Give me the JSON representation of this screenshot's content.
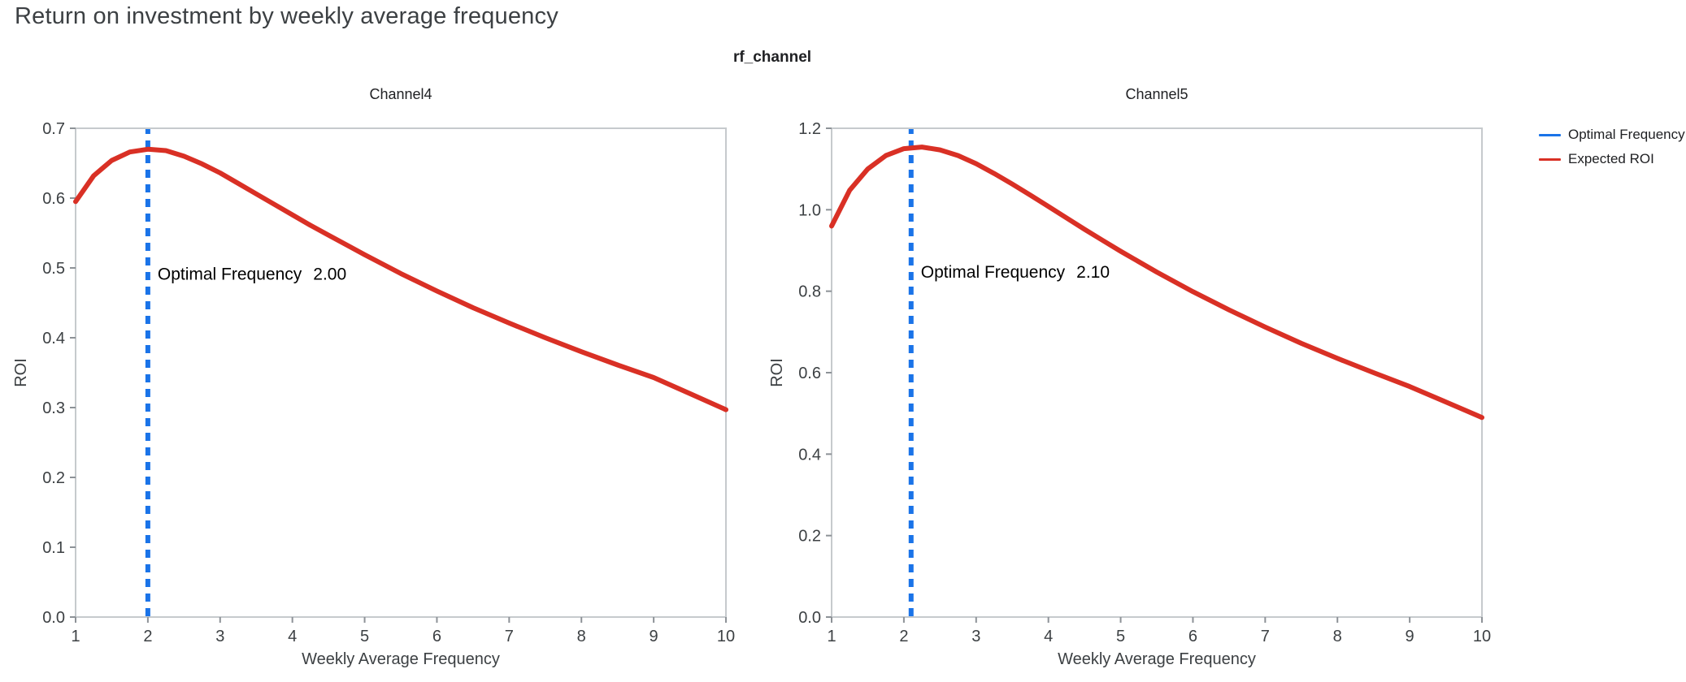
{
  "page": {
    "title": "Return on investment by weekly average frequency",
    "facet_title": "rf_channel"
  },
  "legend": {
    "items": [
      {
        "label": "Optimal Frequency",
        "color": "#1a73e8"
      },
      {
        "label": "Expected ROI",
        "color": "#d93025"
      }
    ]
  },
  "chart_data": {
    "type": "line",
    "title": "rf_channel",
    "xlabel": "Weekly Average Frequency",
    "ylabel": "ROI",
    "legend_position": "top-right",
    "grid": false,
    "colors": {
      "optimal": "#1a73e8",
      "roi": "#d93025"
    },
    "charts": [
      {
        "title": "Channel4",
        "xlim": [
          1,
          10
        ],
        "ylim": [
          0,
          0.7
        ],
        "xticks": [
          1,
          2,
          3,
          4,
          5,
          6,
          7,
          8,
          9,
          10
        ],
        "xtick_labels": [
          "1",
          "2",
          "3",
          "4",
          "5",
          "6",
          "7",
          "8",
          "9",
          "10"
        ],
        "yticks": [
          0,
          0.1,
          0.2,
          0.3,
          0.4,
          0.5,
          0.6,
          0.7
        ],
        "ytick_labels": [
          "0.0",
          "0.1",
          "0.2",
          "0.3",
          "0.4",
          "0.5",
          "0.6",
          "0.7"
        ],
        "optimal_frequency": 2.0,
        "annotation": {
          "label": "Optimal Frequency",
          "value": "2.00",
          "y": 0.49
        },
        "series": [
          {
            "name": "Expected ROI",
            "x": [
              1,
              1.25,
              1.5,
              1.75,
              2,
              2.25,
              2.5,
              2.75,
              3,
              3.25,
              3.5,
              3.75,
              4,
              4.25,
              4.5,
              4.75,
              5,
              5.5,
              6,
              6.5,
              7,
              7.5,
              8,
              8.5,
              9,
              9.5,
              10
            ],
            "y": [
              0.595,
              0.632,
              0.654,
              0.666,
              0.67,
              0.668,
              0.66,
              0.649,
              0.636,
              0.621,
              0.606,
              0.591,
              0.576,
              0.561,
              0.547,
              0.533,
              0.519,
              0.492,
              0.467,
              0.443,
              0.421,
              0.4,
              0.38,
              0.361,
              0.343,
              0.32,
              0.297
            ]
          }
        ]
      },
      {
        "title": "Channel5",
        "xlim": [
          1,
          10
        ],
        "ylim": [
          0,
          1.2
        ],
        "xticks": [
          1,
          2,
          3,
          4,
          5,
          6,
          7,
          8,
          9,
          10
        ],
        "xtick_labels": [
          "1",
          "2",
          "3",
          "4",
          "5",
          "6",
          "7",
          "8",
          "9",
          "10"
        ],
        "yticks": [
          0,
          0.2,
          0.4,
          0.6,
          0.8,
          1.0,
          1.2
        ],
        "ytick_labels": [
          "0.0",
          "0.2",
          "0.4",
          "0.6",
          "0.8",
          "1.0",
          "1.2"
        ],
        "optimal_frequency": 2.1,
        "annotation": {
          "label": "Optimal Frequency",
          "value": "2.10",
          "y": 0.845
        },
        "series": [
          {
            "name": "Expected ROI",
            "x": [
              1,
              1.25,
              1.5,
              1.75,
              2,
              2.25,
              2.5,
              2.75,
              3,
              3.25,
              3.5,
              3.75,
              4,
              4.25,
              4.5,
              4.75,
              5,
              5.5,
              6,
              6.5,
              7,
              7.5,
              8,
              8.5,
              9,
              9.5,
              10
            ],
            "y": [
              0.96,
              1.048,
              1.1,
              1.133,
              1.15,
              1.154,
              1.147,
              1.133,
              1.113,
              1.089,
              1.063,
              1.036,
              1.008,
              0.98,
              0.952,
              0.925,
              0.898,
              0.847,
              0.799,
              0.754,
              0.712,
              0.672,
              0.635,
              0.6,
              0.566,
              0.528,
              0.49
            ]
          }
        ]
      }
    ]
  }
}
